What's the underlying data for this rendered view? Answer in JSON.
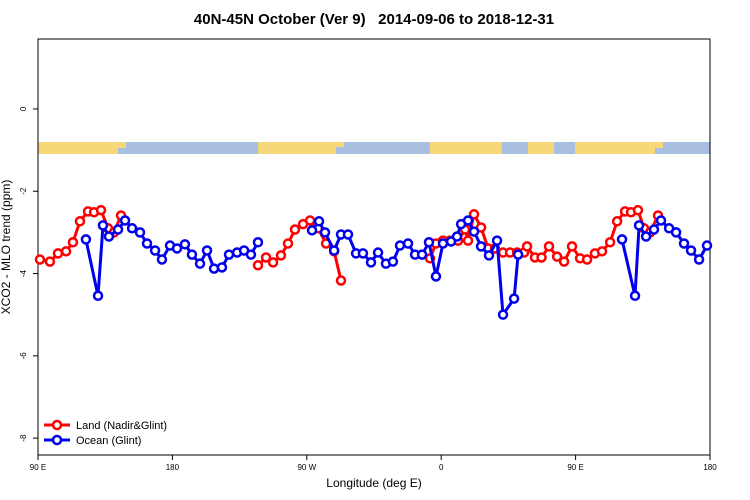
{
  "chart_data": {
    "type": "line",
    "title": "40N-45N October (Ver 9)   2014-09-06 to 2018-12-31",
    "xlabel": "Longitude (deg E)",
    "ylabel": "XCO2 - MLO trend (ppm)",
    "xlim": [
      90,
      540
    ],
    "ylim": [
      -8.41,
      1.7
    ],
    "xticks": [
      {
        "value": 90,
        "label": "90 E"
      },
      180,
      {
        "value": 270,
        "label": "90 W"
      },
      {
        "value": 360,
        "label": "0"
      },
      {
        "value": 450,
        "label": "90 E"
      },
      {
        "value": 540,
        "label": "180"
      }
    ],
    "yticks": [
      0,
      -2,
      -4,
      -6,
      -8
    ],
    "legend": "bottom-left",
    "series": [
      {
        "name": "Land (Nadir&Glint)",
        "color": "#ff0000",
        "x": [
          91.3,
          98,
          103.4,
          108.8,
          113.4,
          118.1,
          123.5,
          127.5,
          132.2,
          136.9,
          140.9,
          145.6,
          null,
          237.3,
          242.7,
          247.4,
          252.7,
          257.4,
          262.1,
          267.5,
          272.2,
          277.5,
          282.9,
          288.3,
          292.9,
          null,
          352.5,
          356.5,
          361.2,
          365.9,
          371.3,
          376,
          378,
          382,
          386.7,
          391.4,
          396,
          401.4,
          406.1,
          410.8,
          415.5,
          417.5,
          422.8,
          427.2,
          432.2,
          437.6,
          442.3,
          447.6,
          453,
          457.7,
          463,
          467.7,
          473.1,
          477.8,
          483.1,
          487.1,
          491.8,
          495.8,
          499.9,
          505.2
        ],
        "values": [
          -3.66,
          -3.71,
          -3.51,
          -3.46,
          -3.24,
          -2.73,
          -2.49,
          -2.51,
          -2.46,
          -2.9,
          -3.0,
          -2.59,
          null,
          -3.8,
          -3.61,
          -3.73,
          -3.56,
          -3.27,
          -2.93,
          -2.8,
          -2.71,
          -2.9,
          -3.27,
          -3.46,
          -4.17,
          null,
          -3.63,
          -3.27,
          -3.2,
          -3.2,
          -3.2,
          -2.93,
          -3.2,
          -2.56,
          -2.88,
          -3.39,
          -3.39,
          -3.49,
          -3.49,
          -3.49,
          -3.49,
          -3.34,
          -3.61,
          -3.61,
          -3.34,
          -3.59,
          -3.71,
          -3.34,
          -3.63,
          -3.66,
          -3.51,
          -3.46,
          -3.24,
          -2.73,
          -2.49,
          -2.51,
          -2.46,
          -2.9,
          -3.0,
          -2.59
        ]
      },
      {
        "name": "Ocean (Glint)",
        "color": "#0000ee",
        "x": [
          122.1,
          130.2,
          133.5,
          137.5,
          143.6,
          148.3,
          153,
          158.3,
          163,
          168.4,
          173,
          178.4,
          183.1,
          188.4,
          193.1,
          198.5,
          203.2,
          207.9,
          213.2,
          217.9,
          223.3,
          228,
          232.6,
          237.3,
          null,
          273.5,
          278.2,
          282.2,
          288.3,
          292.9,
          297.6,
          303,
          307.6,
          313,
          317.7,
          323,
          327.7,
          332.4,
          337.8,
          342.5,
          347.2,
          351.8,
          356.5,
          361.2,
          366.6,
          370.6,
          373.3,
          378,
          382,
          386.7,
          392,
          397.4,
          401.4,
          408.8,
          411.5,
          null,
          481.1,
          489.8,
          492.5,
          497.2,
          502.5,
          507.2,
          512.6,
          517.3,
          522.6,
          527.3,
          532.7,
          538
        ],
        "values": [
          -3.17,
          -4.54,
          -2.83,
          -3.1,
          -2.93,
          -2.71,
          -2.9,
          -3.0,
          -3.27,
          -3.44,
          -3.66,
          -3.32,
          -3.39,
          -3.29,
          -3.54,
          -3.76,
          -3.44,
          -3.88,
          -3.85,
          -3.54,
          -3.49,
          -3.44,
          -3.54,
          -3.24,
          null,
          -2.95,
          -2.73,
          -3.0,
          -3.44,
          -3.05,
          -3.05,
          -3.51,
          -3.51,
          -3.73,
          -3.49,
          -3.76,
          -3.71,
          -3.32,
          -3.27,
          -3.54,
          -3.54,
          -3.24,
          -4.07,
          -3.27,
          -3.22,
          -3.1,
          -2.8,
          -2.71,
          -2.98,
          -3.34,
          -3.56,
          -3.2,
          -5.0,
          -4.61,
          -3.54,
          null,
          -3.17,
          -4.54,
          -2.83,
          -3.1,
          -2.93,
          -2.71,
          -2.9,
          -3.0,
          -3.27,
          -3.44,
          -3.66,
          -3.32
        ]
      }
    ]
  }
}
